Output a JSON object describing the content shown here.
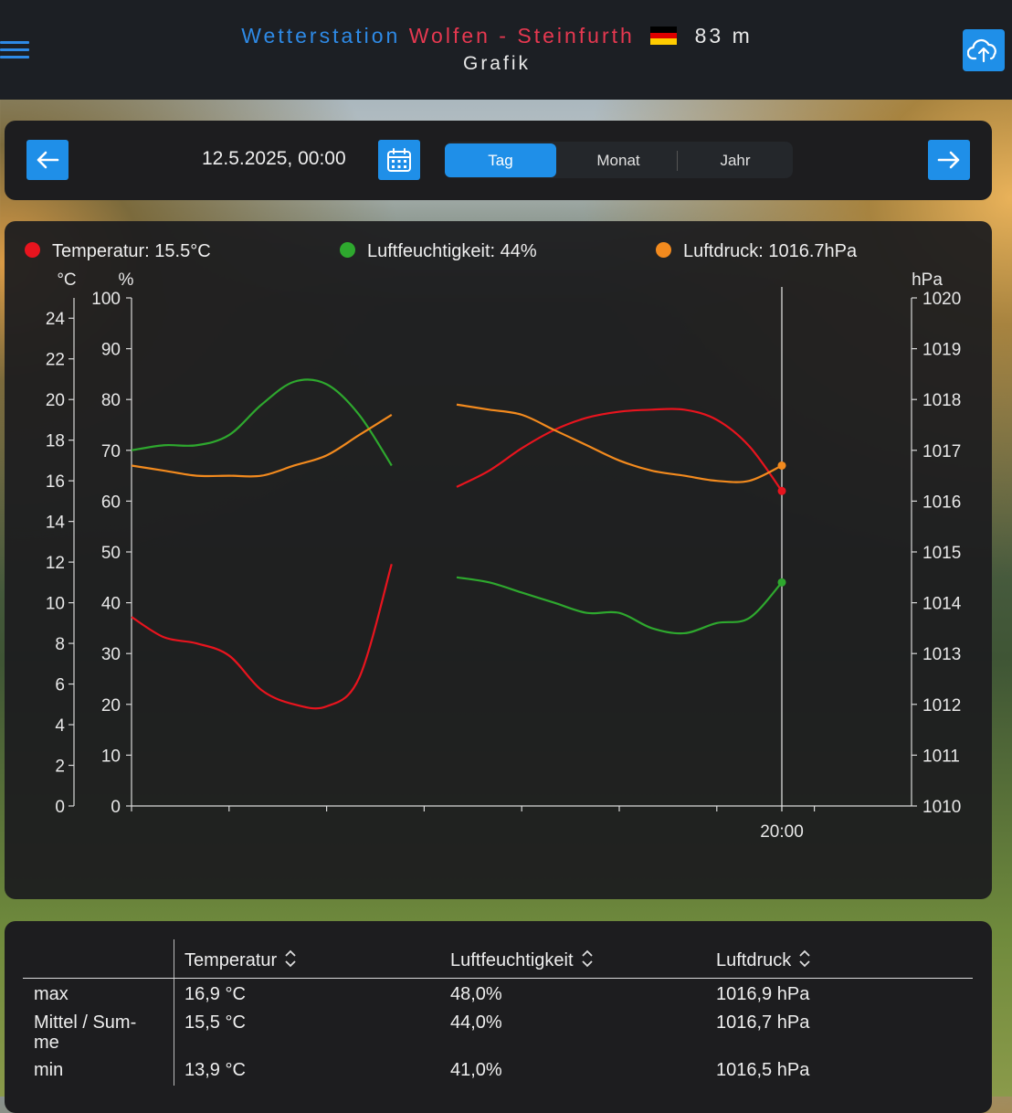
{
  "header": {
    "title_part1": "Wetterstation",
    "title_part2": "Wolfen - Steinfurth",
    "altitude": "83 m",
    "subtitle": "Grafik",
    "flag_colors": [
      "#000000",
      "#dd0000",
      "#ffcc00"
    ],
    "icons": {
      "menu": "hamburger-icon",
      "upload": "cloud-upload-icon"
    }
  },
  "nav": {
    "date": "12.5.2025, 00:00",
    "tabs": [
      {
        "label": "Tag",
        "active": true
      },
      {
        "label": "Monat",
        "active": false
      },
      {
        "label": "Jahr",
        "active": false
      }
    ],
    "icons": {
      "prev": "arrow-left-icon",
      "next": "arrow-right-icon",
      "calendar": "calendar-icon"
    },
    "accent": "#1f8fe8"
  },
  "legend": [
    {
      "label": "Temperatur: 15.5°C",
      "color": "#e8141e"
    },
    {
      "label": "Luftfeuchtigkeit: 44%",
      "color": "#2ea82e"
    },
    {
      "label": "Luftdruck: 1016.7hPa",
      "color": "#f28a1e"
    }
  ],
  "chart_data": {
    "type": "line",
    "x_label": "20:00",
    "cursor_x": 20,
    "axes": {
      "temp": {
        "unit": "°C",
        "min": 0,
        "max": 25,
        "ticks": [
          0,
          2,
          4,
          6,
          8,
          10,
          12,
          14,
          16,
          18,
          20,
          22,
          24
        ]
      },
      "humidity": {
        "unit": "%",
        "min": 0,
        "max": 100,
        "ticks": [
          0,
          10,
          20,
          30,
          40,
          50,
          60,
          70,
          80,
          90,
          100
        ]
      },
      "pressure": {
        "unit": "hPa",
        "min": 1010,
        "max": 1020,
        "ticks": [
          1010,
          1011,
          1012,
          1013,
          1014,
          1015,
          1016,
          1017,
          1018,
          1019,
          1020
        ]
      }
    },
    "series": [
      {
        "name": "Temperatur",
        "axis": "temp",
        "color": "#e8141e",
        "segments": [
          [
            [
              0,
              9.3
            ],
            [
              1,
              8.3
            ],
            [
              2,
              8.0
            ],
            [
              3,
              7.4
            ],
            [
              4,
              5.7
            ],
            [
              5,
              5.0
            ],
            [
              6,
              4.9
            ],
            [
              7,
              6.3
            ],
            [
              8,
              11.9
            ]
          ],
          [
            [
              10,
              15.7
            ],
            [
              11,
              16.5
            ],
            [
              12,
              17.6
            ],
            [
              13,
              18.5
            ],
            [
              14,
              19.1
            ],
            [
              15,
              19.4
            ],
            [
              16,
              19.5
            ],
            [
              17,
              19.5
            ],
            [
              18,
              19.0
            ],
            [
              19,
              17.7
            ],
            [
              20,
              15.5
            ]
          ]
        ]
      },
      {
        "name": "Luftfeuchtigkeit",
        "axis": "humidity",
        "color": "#2ea82e",
        "segments": [
          [
            [
              0,
              70
            ],
            [
              1,
              71
            ],
            [
              2,
              71
            ],
            [
              3,
              73
            ],
            [
              4,
              79
            ],
            [
              5,
              83.5
            ],
            [
              6,
              83
            ],
            [
              7,
              77
            ],
            [
              8,
              67
            ]
          ],
          [
            [
              10,
              45
            ],
            [
              11,
              44
            ],
            [
              12,
              42
            ],
            [
              13,
              40
            ],
            [
              14,
              38
            ],
            [
              15,
              38
            ],
            [
              16,
              35
            ],
            [
              17,
              34
            ],
            [
              18,
              36
            ],
            [
              19,
              37
            ],
            [
              20,
              44
            ]
          ]
        ]
      },
      {
        "name": "Luftdruck",
        "axis": "pressure",
        "color": "#f28a1e",
        "segments": [
          [
            [
              0,
              1016.7
            ],
            [
              1,
              1016.6
            ],
            [
              2,
              1016.5
            ],
            [
              3,
              1016.5
            ],
            [
              4,
              1016.5
            ],
            [
              5,
              1016.7
            ],
            [
              6,
              1016.9
            ],
            [
              7,
              1017.3
            ],
            [
              8,
              1017.7
            ]
          ],
          [
            [
              10,
              1017.9
            ],
            [
              11,
              1017.8
            ],
            [
              12,
              1017.7
            ],
            [
              13,
              1017.4
            ],
            [
              14,
              1017.1
            ],
            [
              15,
              1016.8
            ],
            [
              16,
              1016.6
            ],
            [
              17,
              1016.5
            ],
            [
              18,
              1016.4
            ],
            [
              19,
              1016.4
            ],
            [
              20,
              1016.7
            ]
          ]
        ]
      }
    ]
  },
  "stats": {
    "headers": [
      "Temperatur",
      "Luftfeuchtigkeit",
      "Luftdruck"
    ],
    "rows": [
      {
        "label": "max",
        "values": [
          "16,9 °C",
          "48,0%",
          "1016,9 hPa"
        ]
      },
      {
        "label": "Mittel / Sum-",
        "label2": "me",
        "values": [
          "15,5 °C",
          "44,0%",
          "1016,7 hPa"
        ]
      },
      {
        "label": "min",
        "values": [
          "13,9 °C",
          "41,0%",
          "1016,5 hPa"
        ]
      }
    ]
  }
}
